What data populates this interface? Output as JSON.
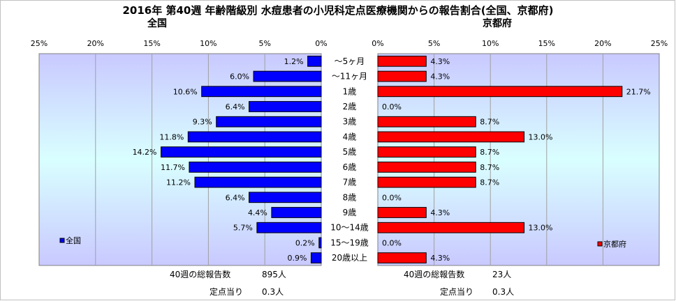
{
  "title": "2016年 第40週 年齢階級別 水痘患者の小児科定点医療機関からの報告割合(全国、京都府)",
  "chart_data": {
    "type": "bar",
    "orientation": "horizontal",
    "categories": [
      "～5ヶ月",
      "～11ヶ月",
      "1歳",
      "2歳",
      "3歳",
      "4歳",
      "5歳",
      "6歳",
      "7歳",
      "8歳",
      "9歳",
      "10～14歳",
      "15～19歳",
      "20歳以上"
    ],
    "xlim": [
      0,
      25
    ],
    "x_ticks": [
      "0%",
      "5%",
      "10%",
      "15%",
      "20%",
      "25%"
    ],
    "grid": true,
    "panels": [
      {
        "title": "全国",
        "legend": "全国",
        "legend_position": "bottom-left",
        "direction": "left",
        "color": "#0000ff",
        "values": [
          1.2,
          6.0,
          10.6,
          6.4,
          9.3,
          11.8,
          14.2,
          11.7,
          11.2,
          6.4,
          4.4,
          5.7,
          0.2,
          0.9
        ],
        "labels": [
          "1.2%",
          "6.0%",
          "10.6%",
          "6.4%",
          "9.3%",
          "11.8%",
          "14.2%",
          "11.7%",
          "11.2%",
          "6.4%",
          "4.4%",
          "5.7%",
          "0.2%",
          "0.9%"
        ],
        "footer": {
          "total_label": "40週の総報告数",
          "total_value": "895人",
          "per_label": "定点当り",
          "per_value": "0.3人"
        }
      },
      {
        "title": "京都府",
        "legend": "京都府",
        "legend_position": "bottom-right",
        "direction": "right",
        "color": "#ff0000",
        "values": [
          4.3,
          4.3,
          21.7,
          0.0,
          8.7,
          13.0,
          8.7,
          8.7,
          8.7,
          0.0,
          4.3,
          13.0,
          0.0,
          4.3
        ],
        "labels": [
          "4.3%",
          "4.3%",
          "21.7%",
          "0.0%",
          "8.7%",
          "13.0%",
          "8.7%",
          "8.7%",
          "8.7%",
          "0.0%",
          "4.3%",
          "13.0%",
          "0.0%",
          "4.3%"
        ],
        "footer": {
          "total_label": "40週の総報告数",
          "total_value": "23人",
          "per_label": "定点当り",
          "per_value": "0.3人"
        }
      }
    ]
  }
}
